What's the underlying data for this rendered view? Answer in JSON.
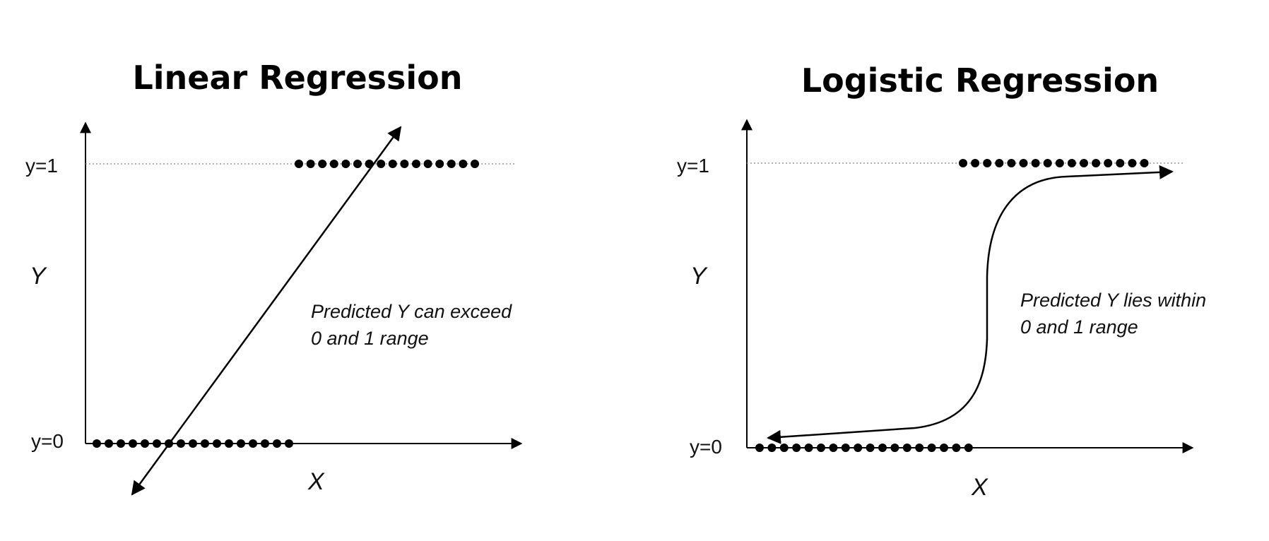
{
  "linear": {
    "title": "Linear Regression",
    "y_top_label": "y=1",
    "y_bottom_label": "y=0",
    "y_axis_label": "Y",
    "x_axis_label": "X",
    "note_line1": "Predicted Y can exceed",
    "note_line2": "0 and 1 range"
  },
  "logistic": {
    "title": "Logistic Regression",
    "y_top_label": "y=1",
    "y_bottom_label": "y=0",
    "y_axis_label": "Y",
    "x_axis_label": "X",
    "note_line1": "Predicted Y lies within",
    "note_line2": "0 and 1 range"
  },
  "colors": {
    "ink": "#000000",
    "guide": "#9a9a9a"
  }
}
